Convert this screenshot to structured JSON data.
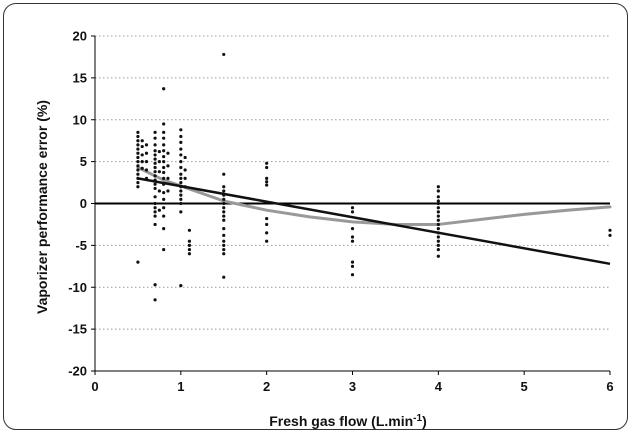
{
  "chart_data": {
    "type": "scatter",
    "xlabel": "Fresh gas flow (L.min",
    "xlabel_superscript": "-1",
    "xlabel_close": ")",
    "ylabel": "Vaporizer performance error (%)",
    "xlim": [
      0,
      6
    ],
    "ylim": [
      -20,
      20
    ],
    "x_ticks": [
      0,
      1,
      2,
      3,
      4,
      5,
      6
    ],
    "y_ticks": [
      20,
      15,
      10,
      5,
      0,
      -5,
      -10,
      -15,
      -20
    ],
    "grid": "horizontal dotted",
    "colors": {
      "points": "#111111",
      "linear_fit": "#111111",
      "smooth_fit": "#999999",
      "zero_line": "#000000",
      "grid": "#999999"
    },
    "series": [
      {
        "type": "scatter",
        "points": [
          [
            0.5,
            8.5
          ],
          [
            0.5,
            8.0
          ],
          [
            0.5,
            7.5
          ],
          [
            0.5,
            7.0
          ],
          [
            0.5,
            6.5
          ],
          [
            0.5,
            6.0
          ],
          [
            0.5,
            5.5
          ],
          [
            0.5,
            5.0
          ],
          [
            0.5,
            4.5
          ],
          [
            0.5,
            4.0
          ],
          [
            0.5,
            3.5
          ],
          [
            0.5,
            3.0
          ],
          [
            0.5,
            2.5
          ],
          [
            0.5,
            2.0
          ],
          [
            0.5,
            -7.0
          ],
          [
            0.55,
            7.5
          ],
          [
            0.55,
            6.8
          ],
          [
            0.55,
            5.8
          ],
          [
            0.55,
            5.0
          ],
          [
            0.55,
            4.2
          ],
          [
            0.6,
            7.0
          ],
          [
            0.6,
            6.0
          ],
          [
            0.6,
            5.0
          ],
          [
            0.6,
            4.0
          ],
          [
            0.6,
            3.0
          ],
          [
            0.7,
            8.5
          ],
          [
            0.7,
            7.8
          ],
          [
            0.7,
            7.0
          ],
          [
            0.7,
            6.3
          ],
          [
            0.7,
            5.8
          ],
          [
            0.7,
            5.3
          ],
          [
            0.7,
            4.8
          ],
          [
            0.7,
            4.3
          ],
          [
            0.7,
            3.8
          ],
          [
            0.7,
            3.3
          ],
          [
            0.7,
            2.8
          ],
          [
            0.7,
            2.3
          ],
          [
            0.7,
            1.8
          ],
          [
            0.7,
            0.8
          ],
          [
            0.7,
            0.0
          ],
          [
            0.7,
            -0.5
          ],
          [
            0.7,
            -1.0
          ],
          [
            0.7,
            -1.5
          ],
          [
            0.7,
            -2.5
          ],
          [
            0.7,
            -9.7
          ],
          [
            0.7,
            -11.5
          ],
          [
            0.75,
            6.2
          ],
          [
            0.75,
            5.0
          ],
          [
            0.75,
            3.8
          ],
          [
            0.75,
            1.5
          ],
          [
            0.75,
            -0.8
          ],
          [
            0.8,
            13.7
          ],
          [
            0.8,
            9.5
          ],
          [
            0.8,
            8.5
          ],
          [
            0.8,
            7.8
          ],
          [
            0.8,
            7.0
          ],
          [
            0.8,
            6.3
          ],
          [
            0.8,
            5.6
          ],
          [
            0.8,
            5.0
          ],
          [
            0.8,
            4.3
          ],
          [
            0.8,
            3.7
          ],
          [
            0.8,
            3.0
          ],
          [
            0.8,
            2.3
          ],
          [
            0.8,
            1.3
          ],
          [
            0.8,
            0.5
          ],
          [
            0.8,
            -0.5
          ],
          [
            0.8,
            -1.5
          ],
          [
            0.8,
            -3.0
          ],
          [
            0.8,
            -5.5
          ],
          [
            0.85,
            6.0
          ],
          [
            0.85,
            4.5
          ],
          [
            0.85,
            3.0
          ],
          [
            0.85,
            1.5
          ],
          [
            1.0,
            8.8
          ],
          [
            1.0,
            8.0
          ],
          [
            1.0,
            7.3
          ],
          [
            1.0,
            6.5
          ],
          [
            1.0,
            5.8
          ],
          [
            1.0,
            5.0
          ],
          [
            1.0,
            4.3
          ],
          [
            1.0,
            3.5
          ],
          [
            1.0,
            3.0
          ],
          [
            1.0,
            2.5
          ],
          [
            1.0,
            2.0
          ],
          [
            1.0,
            1.5
          ],
          [
            1.0,
            1.0
          ],
          [
            1.0,
            0.5
          ],
          [
            1.0,
            0.0
          ],
          [
            1.0,
            -1.0
          ],
          [
            1.0,
            -9.8
          ],
          [
            1.05,
            5.5
          ],
          [
            1.05,
            4.0
          ],
          [
            1.05,
            3.0
          ],
          [
            1.05,
            2.0
          ],
          [
            1.1,
            -3.2
          ],
          [
            1.1,
            -4.5
          ],
          [
            1.1,
            -5.0
          ],
          [
            1.1,
            -5.5
          ],
          [
            1.1,
            -6.0
          ],
          [
            1.5,
            17.8
          ],
          [
            1.5,
            3.5
          ],
          [
            1.5,
            2.0
          ],
          [
            1.5,
            1.5
          ],
          [
            1.5,
            1.0
          ],
          [
            1.5,
            0.5
          ],
          [
            1.5,
            0.0
          ],
          [
            1.5,
            -0.5
          ],
          [
            1.5,
            -1.0
          ],
          [
            1.5,
            -1.5
          ],
          [
            1.5,
            -2.0
          ],
          [
            1.5,
            -3.0
          ],
          [
            1.5,
            -3.8
          ],
          [
            1.5,
            -4.5
          ],
          [
            1.5,
            -5.0
          ],
          [
            1.5,
            -5.5
          ],
          [
            1.5,
            -6.0
          ],
          [
            1.5,
            -8.8
          ],
          [
            2.0,
            4.8
          ],
          [
            2.0,
            4.3
          ],
          [
            2.0,
            3.0
          ],
          [
            2.0,
            2.6
          ],
          [
            2.0,
            2.2
          ],
          [
            2.0,
            -1.8
          ],
          [
            2.0,
            -2.5
          ],
          [
            2.0,
            -3.5
          ],
          [
            2.0,
            -4.5
          ],
          [
            3.0,
            -0.5
          ],
          [
            3.0,
            -1.0
          ],
          [
            3.0,
            -3.0
          ],
          [
            3.0,
            -4.0
          ],
          [
            3.0,
            -4.5
          ],
          [
            3.0,
            -7.0
          ],
          [
            3.0,
            -7.5
          ],
          [
            3.0,
            -8.5
          ],
          [
            4.0,
            2.0
          ],
          [
            4.0,
            1.5
          ],
          [
            4.0,
            0.8
          ],
          [
            4.0,
            0.3
          ],
          [
            4.0,
            0.0
          ],
          [
            4.0,
            -0.5
          ],
          [
            4.0,
            -1.0
          ],
          [
            4.0,
            -1.5
          ],
          [
            4.0,
            -2.0
          ],
          [
            4.0,
            -2.5
          ],
          [
            4.0,
            -3.0
          ],
          [
            4.0,
            -3.5
          ],
          [
            4.0,
            -4.0
          ],
          [
            4.0,
            -4.5
          ],
          [
            4.0,
            -5.0
          ],
          [
            4.0,
            -5.5
          ],
          [
            4.0,
            -6.3
          ],
          [
            6.0,
            -3.2
          ],
          [
            6.0,
            -3.8
          ]
        ]
      },
      {
        "type": "line",
        "points": [
          [
            0.5,
            3.0
          ],
          [
            6.0,
            -7.2
          ]
        ]
      },
      {
        "type": "line",
        "points": [
          [
            0.5,
            4.3
          ],
          [
            0.8,
            2.8
          ],
          [
            1.0,
            2.1
          ],
          [
            1.5,
            0.3
          ],
          [
            2.0,
            -0.8
          ],
          [
            2.5,
            -1.6
          ],
          [
            3.0,
            -2.2
          ],
          [
            3.5,
            -2.5
          ],
          [
            4.0,
            -2.5
          ],
          [
            4.5,
            -1.9
          ],
          [
            5.0,
            -1.3
          ],
          [
            5.5,
            -0.8
          ],
          [
            6.0,
            -0.4
          ]
        ]
      }
    ]
  }
}
